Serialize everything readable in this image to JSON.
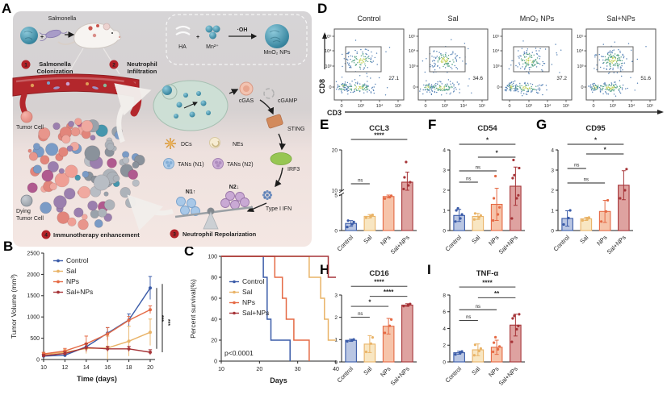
{
  "panels": {
    "A": "A",
    "B": "B",
    "C": "C",
    "D": "D",
    "E": "E",
    "F": "F",
    "G": "G",
    "H": "H",
    "I": "I"
  },
  "colors": {
    "control": "#3A5BA8",
    "sal": "#E9B367",
    "nps": "#E56A45",
    "salnps": "#A63438",
    "control_fill": "#B9C6E3",
    "sal_fill": "#F8E6C2",
    "nps_fill": "#F6C4AA",
    "salnps_fill": "#DEA2A0",
    "badge": "#B22228"
  },
  "panelA": {
    "salmonella": "Salmonella",
    "plus": "+",
    "ha": "HA",
    "mn": "Mn²⁺",
    "oh": "·OH",
    "mno2": "MnO₂ NPs",
    "num1": "1",
    "num2": "2",
    "num3": "3",
    "num4": "4",
    "step1a": "Salmonella",
    "step1b": "Colonization",
    "step2a": "Neutrophil",
    "step2b": "Infiltration",
    "step3": "Neutrophil Repolarization",
    "step4": "Immunotherapy enhancement",
    "tumor_cell": "Tumor Cell",
    "dying1": "Dying",
    "dying2": "Tumor Cell",
    "dcs": "DCs",
    "nes": "NEs",
    "tans1": "TANs (N1)",
    "tans2": "TANs (N2)",
    "cgas": "cGAS",
    "cgamp": "cGAMP",
    "sting": "STING",
    "irf3": "IRF3",
    "ifn": "Type I IFN",
    "n1": "N1↑",
    "n2": "N2↓"
  },
  "chart_data": {
    "B": {
      "type": "line",
      "xlabel": "Time (days)",
      "ylabel": "Tumor Volume (mm³)",
      "x": [
        10,
        12,
        14,
        16,
        18,
        20
      ],
      "xticks": [
        10,
        12,
        14,
        16,
        18,
        20
      ],
      "ylim": [
        0,
        2500
      ],
      "yticks": [
        0,
        500,
        1000,
        1500,
        2000,
        2500
      ],
      "series": [
        {
          "name": "Control",
          "key": "control",
          "values": [
            80,
            100,
            300,
            620,
            930,
            1680
          ],
          "errors": [
            30,
            40,
            80,
            130,
            140,
            270
          ]
        },
        {
          "name": "Sal",
          "key": "sal",
          "values": [
            120,
            170,
            260,
            270,
            430,
            640
          ],
          "errors": [
            40,
            60,
            120,
            280,
            350,
            310
          ]
        },
        {
          "name": "NPs",
          "key": "nps",
          "values": [
            130,
            200,
            370,
            600,
            920,
            1170
          ],
          "errors": [
            40,
            60,
            180,
            150,
            90,
            90
          ]
        },
        {
          "name": "Sal+NPs",
          "key": "salnps",
          "values": [
            90,
            140,
            280,
            250,
            250,
            170
          ],
          "errors": [
            30,
            40,
            90,
            60,
            60,
            60
          ]
        }
      ],
      "sig": [
        "***",
        "***"
      ]
    },
    "C": {
      "type": "survival",
      "xlabel": "Days",
      "ylabel": "Percent survival(%)",
      "annotation": "p<0.0001",
      "xlim": [
        10,
        40
      ],
      "xticks": [
        10,
        20,
        30,
        40
      ],
      "ylim": [
        0,
        100
      ],
      "yticks": [
        0,
        20,
        40,
        60,
        80,
        100
      ],
      "series": [
        {
          "name": "Control",
          "key": "control",
          "points": [
            [
              10,
              100
            ],
            [
              21,
              100
            ],
            [
              21,
              80
            ],
            [
              22,
              80
            ],
            [
              22,
              40
            ],
            [
              23,
              40
            ],
            [
              23,
              20
            ],
            [
              28,
              20
            ],
            [
              28,
              0
            ]
          ]
        },
        {
          "name": "Sal",
          "key": "sal",
          "points": [
            [
              10,
              100
            ],
            [
              33,
              100
            ],
            [
              33,
              80
            ],
            [
              36,
              80
            ],
            [
              36,
              60
            ],
            [
              37,
              60
            ],
            [
              37,
              40
            ],
            [
              38,
              40
            ],
            [
              38,
              20
            ],
            [
              40,
              20
            ]
          ]
        },
        {
          "name": "NPs",
          "key": "nps",
          "points": [
            [
              10,
              100
            ],
            [
              24,
              100
            ],
            [
              24,
              80
            ],
            [
              26,
              80
            ],
            [
              26,
              60
            ],
            [
              27,
              60
            ],
            [
              27,
              40
            ],
            [
              29,
              40
            ],
            [
              29,
              20
            ],
            [
              33,
              20
            ],
            [
              33,
              0
            ]
          ]
        },
        {
          "name": "Sal+NPs",
          "key": "salnps",
          "points": [
            [
              10,
              100
            ],
            [
              38,
              100
            ],
            [
              38,
              80
            ],
            [
              40,
              80
            ]
          ]
        }
      ]
    },
    "D": {
      "type": "flow",
      "ylabel": "CD8",
      "xlabel": "CD3",
      "yticks": [
        "10⁵",
        "10⁴",
        "10³",
        "0"
      ],
      "xticks": [
        "0",
        "10³",
        "10⁴",
        "10⁵"
      ],
      "plots": [
        {
          "title": "Control",
          "value": "27.1"
        },
        {
          "title": "Sal",
          "value": "34.6"
        },
        {
          "title": "MnO₂ NPs",
          "value": "37.2"
        },
        {
          "title": "Sal+NPs",
          "value": "51.6"
        }
      ]
    },
    "E": {
      "type": "bar",
      "title": "CCL3",
      "categories": [
        "Control",
        "Sal",
        "NPs",
        "Sal+NPs"
      ],
      "values": [
        1.0,
        2.0,
        4.8,
        12.0
      ],
      "errors": [
        0.4,
        0.25,
        0.2,
        2.5
      ],
      "points": [
        [
          0.5,
          0.9,
          1.2,
          1.4
        ],
        [
          1.8,
          2.0,
          2.2
        ],
        [
          4.5,
          4.7,
          4.9
        ],
        [
          10.3,
          11.2,
          12.0,
          13.2,
          17.0
        ]
      ],
      "ybreak": {
        "low": [
          0,
          5
        ],
        "high": [
          10,
          20
        ]
      },
      "yticks": [
        0,
        5,
        10,
        20
      ],
      "sig": [
        {
          "a": 0,
          "b": 3,
          "label": "****",
          "yf": -0.13
        },
        {
          "a": 0,
          "b": 1,
          "label": "ns",
          "yf": 0.42
        }
      ]
    },
    "F": {
      "type": "bar",
      "title": "CD54",
      "categories": [
        "Control",
        "Sal",
        "NPs",
        "Sal+NPs"
      ],
      "values": [
        0.75,
        0.7,
        1.3,
        2.2
      ],
      "errors": [
        0.3,
        0.15,
        0.8,
        0.95
      ],
      "ylim": [
        0,
        4
      ],
      "yticks": [
        0,
        1,
        2,
        3,
        4
      ],
      "points": [
        [
          0.45,
          0.6,
          0.8,
          1.0,
          1.1
        ],
        [
          0.55,
          0.65,
          0.75,
          0.85
        ],
        [
          0.5,
          0.8,
          1.15,
          1.6,
          2.7
        ],
        [
          0.6,
          1.6,
          1.75,
          2.6,
          2.75,
          3.1,
          3.5
        ]
      ],
      "sig": [
        {
          "a": 0,
          "b": 3,
          "label": "*",
          "yf": -0.07
        },
        {
          "a": 1,
          "b": 3,
          "label": "*",
          "yf": 0.09
        },
        {
          "a": 0,
          "b": 2,
          "label": "ns",
          "yf": 0.26
        },
        {
          "a": 0,
          "b": 1,
          "label": "ns",
          "yf": 0.4
        }
      ]
    },
    "G": {
      "type": "bar",
      "title": "CD95",
      "categories": [
        "Control",
        "Sal",
        "NPs",
        "Sal+NPs"
      ],
      "values": [
        0.6,
        0.58,
        0.95,
        2.25
      ],
      "errors": [
        0.38,
        0.08,
        0.55,
        0.72
      ],
      "ylim": [
        0,
        4
      ],
      "yticks": [
        0,
        1,
        2,
        3,
        4
      ],
      "points": [
        [
          0.3,
          0.62,
          1.0
        ],
        [
          0.5,
          0.58,
          0.65
        ],
        [
          0.45,
          0.95,
          1.5
        ],
        [
          1.6,
          2.0,
          3.05
        ]
      ],
      "sig": [
        {
          "a": 0,
          "b": 3,
          "label": "*",
          "yf": -0.07
        },
        {
          "a": 1,
          "b": 3,
          "label": "*",
          "yf": 0.05
        },
        {
          "a": 0,
          "b": 1,
          "label": "ns",
          "yf": 0.23
        },
        {
          "a": 0,
          "b": 2,
          "label": "ns",
          "yf": 0.41
        }
      ]
    },
    "H": {
      "type": "bar",
      "title": "CD16",
      "categories": [
        "Control",
        "Sal",
        "NPs",
        "Sal+NPs"
      ],
      "values": [
        0.97,
        0.8,
        1.6,
        2.55
      ],
      "errors": [
        0.05,
        0.38,
        0.35,
        0.06
      ],
      "ylim": [
        0,
        3
      ],
      "yticks": [
        0,
        1,
        2,
        3
      ],
      "points": [
        [
          0.92,
          0.97,
          1.01
        ],
        [
          0.45,
          0.82,
          1.1
        ],
        [
          1.3,
          1.62,
          1.9
        ],
        [
          2.5,
          2.55,
          2.6
        ]
      ],
      "sig": [
        {
          "a": 0,
          "b": 3,
          "label": "****",
          "yf": -0.13
        },
        {
          "a": 1,
          "b": 3,
          "label": "****",
          "yf": 0.02
        },
        {
          "a": 0,
          "b": 2,
          "label": "*",
          "yf": 0.17
        },
        {
          "a": 0,
          "b": 1,
          "label": "ns",
          "yf": 0.33
        }
      ]
    },
    "I": {
      "type": "bar",
      "title": "TNF-α",
      "categories": [
        "Control",
        "Sal",
        "NPs",
        "Sal+NPs"
      ],
      "values": [
        1.1,
        1.45,
        1.75,
        4.4
      ],
      "errors": [
        0.18,
        0.7,
        0.85,
        1.3
      ],
      "ylim": [
        0,
        8
      ],
      "yticks": [
        0,
        2,
        4,
        6,
        8
      ],
      "points": [
        [
          0.9,
          1.1,
          1.25
        ],
        [
          0.8,
          1.3,
          1.6,
          2.05
        ],
        [
          1.2,
          1.5,
          1.85,
          2.3,
          2.95
        ],
        [
          2.4,
          3.9,
          4.3,
          5.2,
          5.5,
          5.7
        ]
      ],
      "sig": [
        {
          "a": 0,
          "b": 3,
          "label": "****",
          "yf": -0.12
        },
        {
          "a": 1,
          "b": 3,
          "label": "**",
          "yf": 0.04
        },
        {
          "a": 0,
          "b": 2,
          "label": "ns",
          "yf": 0.22
        },
        {
          "a": 0,
          "b": 1,
          "label": "ns",
          "yf": 0.38
        }
      ]
    }
  }
}
